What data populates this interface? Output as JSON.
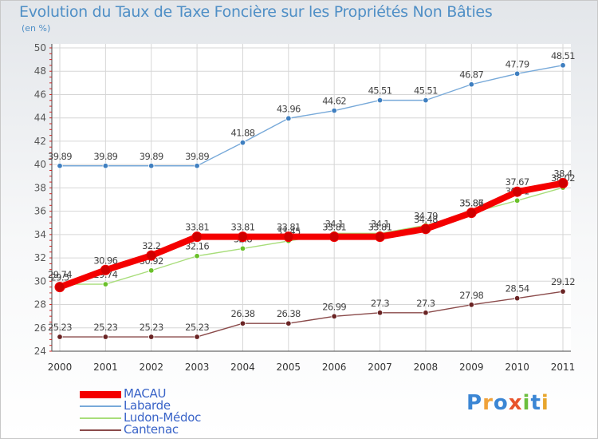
{
  "title": "Evolution du Taux de Taxe Foncière sur les Propriétés Non Bâties",
  "unit_label": "(en %)",
  "logo": {
    "letters": [
      {
        "ch": "P",
        "color": "#3b86d4"
      },
      {
        "ch": "r",
        "color": "#f0a23a"
      },
      {
        "ch": "o",
        "color": "#3b86d4"
      },
      {
        "ch": "x",
        "color": "#e8542c"
      },
      {
        "ch": "i",
        "color": "#6cbf3e"
      },
      {
        "ch": "t",
        "color": "#3b86d4"
      },
      {
        "ch": "i",
        "color": "#e8a62c"
      }
    ]
  },
  "chart_data": {
    "type": "line",
    "title": "Evolution du Taux de Taxe Foncière sur les Propriétés Non Bâties",
    "ylabel": "(en %)",
    "xlabel": "",
    "x": [
      "2000",
      "2001",
      "2002",
      "2003",
      "2004",
      "2005",
      "2006",
      "2007",
      "2008",
      "2009",
      "2010",
      "2011"
    ],
    "ylim": [
      24,
      50
    ],
    "yticks": [
      "24",
      "26",
      "28",
      "30",
      "32",
      "34",
      "36",
      "38",
      "40",
      "42",
      "44",
      "46",
      "48",
      "50"
    ],
    "grid": true,
    "legend_position": "bottom-left",
    "series": [
      {
        "name": "Labarde",
        "color": "#77a9d9",
        "marker": "#3f7fc0",
        "values": [
          39.89,
          39.89,
          39.89,
          39.89,
          41.88,
          43.96,
          44.62,
          45.51,
          45.51,
          46.87,
          47.79,
          48.51
        ],
        "labels": [
          "39.89",
          "39.89",
          "39.89",
          "39.89",
          "41.88",
          "43.96",
          "44.62",
          "45.51",
          "45.51",
          "46.87",
          "47.79",
          "48.51"
        ]
      },
      {
        "name": "Cantenac",
        "color": "#8a4a4a",
        "marker": "#6a2424",
        "values": [
          25.23,
          25.23,
          25.23,
          25.23,
          26.38,
          26.38,
          26.99,
          27.3,
          27.3,
          27.98,
          28.54,
          29.12
        ],
        "labels": [
          "25.23",
          "25.23",
          "25.23",
          "25.23",
          "26.38",
          "26.38",
          "26.99",
          "27.3",
          "27.3",
          "27.98",
          "28.54",
          "29.12"
        ]
      },
      {
        "name": "Ludon-Médoc",
        "color": "#a8dd7a",
        "marker": "#6ac02a",
        "values": [
          29.74,
          29.74,
          30.92,
          32.16,
          32.8,
          33.45,
          34.1,
          34.1,
          34.79,
          35.87,
          36.91,
          38.02
        ],
        "labels": [
          "29.74",
          "29.74",
          "30.92",
          "32.16",
          "32.8",
          "33.45",
          "34.1",
          "34.1",
          "34.79",
          "35.87",
          "36.91",
          "38.02"
        ]
      },
      {
        "name": "MACAU",
        "color": "#f40000",
        "marker": "#d00000",
        "values": [
          29.5,
          30.96,
          32.2,
          33.81,
          33.81,
          33.81,
          33.81,
          33.81,
          34.48,
          35.86,
          37.67,
          38.4
        ],
        "labels": [
          "29.5",
          "30.96",
          "32.2",
          "33.81",
          "33.81",
          "33.81",
          "33.81",
          "33.81",
          "34.48",
          "35.86",
          "37.67",
          "38.4"
        ]
      }
    ],
    "legend_order": [
      "MACAU",
      "Labarde",
      "Ludon-Médoc",
      "Cantenac"
    ]
  }
}
